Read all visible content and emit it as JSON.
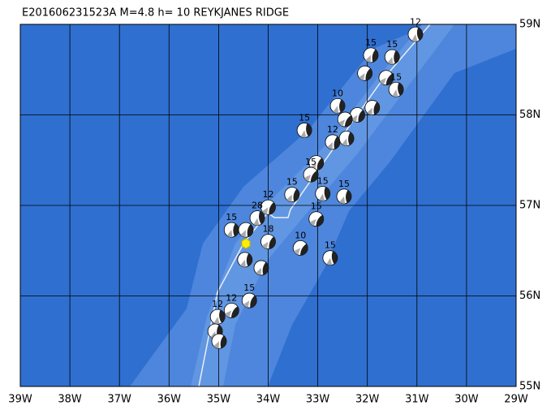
{
  "title": "E201606231523A M=4.8 h= 10 REYKJANES RIDGE",
  "map": {
    "lonlim": [
      -39,
      -29
    ],
    "latlim": [
      55,
      59
    ],
    "lonticks": [
      {
        "value": -39,
        "label": "39W"
      },
      {
        "value": -38,
        "label": "38W"
      },
      {
        "value": -37,
        "label": "37W"
      },
      {
        "value": -36,
        "label": "36W"
      },
      {
        "value": -35,
        "label": "35W"
      },
      {
        "value": -34,
        "label": "34W"
      },
      {
        "value": -33,
        "label": "33W"
      },
      {
        "value": -32,
        "label": "32W"
      },
      {
        "value": -31,
        "label": "31W"
      },
      {
        "value": -30,
        "label": "30W"
      },
      {
        "value": -29,
        "label": "29W"
      }
    ],
    "latticks": [
      {
        "value": 55,
        "label": "55N"
      },
      {
        "value": 56,
        "label": "56N"
      },
      {
        "value": 57,
        "label": "57N"
      },
      {
        "value": 58,
        "label": "58N"
      },
      {
        "value": 59,
        "label": "59N"
      }
    ],
    "events": [
      {
        "lon": -31.03,
        "lat": 58.89,
        "label": "12"
      },
      {
        "lon": -31.5,
        "lat": 58.64,
        "label": "15"
      },
      {
        "lon": -31.93,
        "lat": 58.66,
        "label": "15"
      },
      {
        "lon": -32.05,
        "lat": 58.46
      },
      {
        "lon": -31.62,
        "lat": 58.41
      },
      {
        "lon": -31.42,
        "lat": 58.28,
        "label": "15"
      },
      {
        "lon": -32.6,
        "lat": 58.1,
        "label": "10"
      },
      {
        "lon": -31.9,
        "lat": 58.08
      },
      {
        "lon": -32.2,
        "lat": 58.0
      },
      {
        "lon": -32.45,
        "lat": 57.95
      },
      {
        "lon": -33.27,
        "lat": 57.83,
        "label": "15"
      },
      {
        "lon": -32.42,
        "lat": 57.74
      },
      {
        "lon": -32.7,
        "lat": 57.7,
        "label": "12"
      },
      {
        "lon": -33.03,
        "lat": 57.47
      },
      {
        "lon": -33.14,
        "lat": 57.34,
        "label": "15"
      },
      {
        "lon": -32.9,
        "lat": 57.13,
        "label": "15"
      },
      {
        "lon": -32.47,
        "lat": 57.1,
        "label": "15"
      },
      {
        "lon": -33.52,
        "lat": 57.12,
        "label": "15"
      },
      {
        "lon": -34.0,
        "lat": 56.98,
        "label": "12"
      },
      {
        "lon": -33.03,
        "lat": 56.85,
        "label": "15"
      },
      {
        "lon": -34.22,
        "lat": 56.86,
        "label": "28"
      },
      {
        "lon": -34.74,
        "lat": 56.73,
        "label": "15"
      },
      {
        "lon": -34.45,
        "lat": 56.73
      },
      {
        "lon": -34.0,
        "lat": 56.6,
        "label": "18"
      },
      {
        "lon": -33.35,
        "lat": 56.53,
        "label": "10"
      },
      {
        "lon": -32.75,
        "lat": 56.42,
        "label": "15"
      },
      {
        "lon": -34.47,
        "lat": 56.4
      },
      {
        "lon": -34.14,
        "lat": 56.31
      },
      {
        "lon": -34.38,
        "lat": 55.95,
        "label": "15"
      },
      {
        "lon": -34.74,
        "lat": 55.84,
        "label": "12"
      },
      {
        "lon": -35.02,
        "lat": 55.77,
        "label": "12"
      },
      {
        "lon": -35.07,
        "lat": 55.61
      },
      {
        "lon": -34.99,
        "lat": 55.5
      }
    ]
  }
}
